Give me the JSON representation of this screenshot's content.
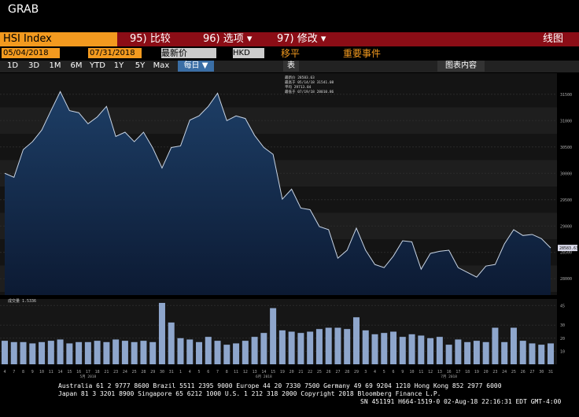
{
  "header": {
    "title": "GRAB"
  },
  "toolbar": {
    "ticker": "HSI Index",
    "compare": "95) 比较",
    "options": "96) 选项 ▾",
    "modify": "97) 修改 ▾",
    "chart_type": "线图",
    "start": "05/04/2018",
    "end": "07/31/2018",
    "field": "最新价",
    "currency": "HKD",
    "shift": "移平",
    "events": "重要事件",
    "periods": [
      "1D",
      "3D",
      "1M",
      "6M",
      "YTD",
      "1Y",
      "5Y",
      "Max"
    ],
    "frequency": "每日 ▼",
    "table": "表",
    "contents": "图表内容"
  },
  "chart_data": {
    "type": "area",
    "categories": [
      "4",
      "7",
      "8",
      "9",
      "10",
      "11",
      "14",
      "15",
      "16",
      "17",
      "18",
      "21",
      "23",
      "24",
      "25",
      "28",
      "29",
      "30",
      "31",
      "1",
      "4",
      "5",
      "6",
      "7",
      "8",
      "11",
      "12",
      "13",
      "14",
      "15",
      "19",
      "20",
      "21",
      "22",
      "25",
      "26",
      "27",
      "28",
      "29",
      "3",
      "4",
      "5",
      "6",
      "9",
      "10",
      "11",
      "12",
      "13",
      "16",
      "17",
      "18",
      "19",
      "20",
      "23",
      "24",
      "25",
      "26",
      "27",
      "30",
      "31"
    ],
    "months": [
      "5月 2018",
      "6月 2018",
      "7月 2018"
    ],
    "values": [
      30000,
      29925,
      30450,
      30600,
      30820,
      31190,
      31550,
      31190,
      31150,
      30940,
      31070,
      31270,
      30700,
      30780,
      30600,
      30780,
      30480,
      30100,
      30490,
      30520,
      31010,
      31090,
      31270,
      31520,
      31000,
      31090,
      31040,
      30720,
      30490,
      30360,
      29510,
      29700,
      29340,
      29310,
      28990,
      28930,
      28390,
      28540,
      28960,
      28540,
      28270,
      28210,
      28430,
      28720,
      28700,
      28180,
      28480,
      28520,
      28540,
      28210,
      28120,
      28030,
      28240,
      28270,
      28660,
      28930,
      28820,
      28840,
      28760,
      28583.63
    ],
    "ylim": [
      27690,
      31900
    ],
    "yticks": [
      28000,
      28500,
      29000,
      29500,
      30000,
      30500,
      31000,
      31500
    ],
    "legend": [
      "最新价 28583.63",
      "最高于 05/14/18 31541.08",
      "平均 29713.84",
      "最低于 07/19/18 28010.86"
    ],
    "last_label": "28583.63",
    "volume_legend": "成交量 1.5336",
    "volume_values": [
      18,
      17,
      17,
      16,
      17,
      18,
      19,
      16,
      17,
      17,
      18,
      17,
      19,
      18,
      17,
      18,
      17,
      47,
      32,
      20,
      19,
      17,
      21,
      18,
      15,
      16,
      18,
      21,
      24,
      43,
      26,
      25,
      24,
      25,
      27,
      28,
      28,
      27,
      36,
      26,
      23,
      24,
      25,
      21,
      23,
      22,
      20,
      21,
      15,
      19,
      17,
      18,
      17,
      28,
      17,
      28,
      18,
      16,
      15,
      16
    ],
    "volume_ylim": [
      0,
      50
    ],
    "volume_yticks": [
      10,
      20,
      30,
      45
    ]
  },
  "footer": [
    "Australia 61 2 9777 8600 Brazil 5511 2395 9000 Europe 44 20 7330 7500 Germany 49 69 9204 1210 Hong Kong 852 2977 6000",
    "Japan 81 3 3201 8900       Singapore 65 6212 1000       U.S. 1 212 318 2000        Copyright 2018 Bloomberg Finance L.P.",
    "SN 451191 H664-1519-0 02-Aug-18 22:16:31 EDT  GMT-4:00"
  ]
}
